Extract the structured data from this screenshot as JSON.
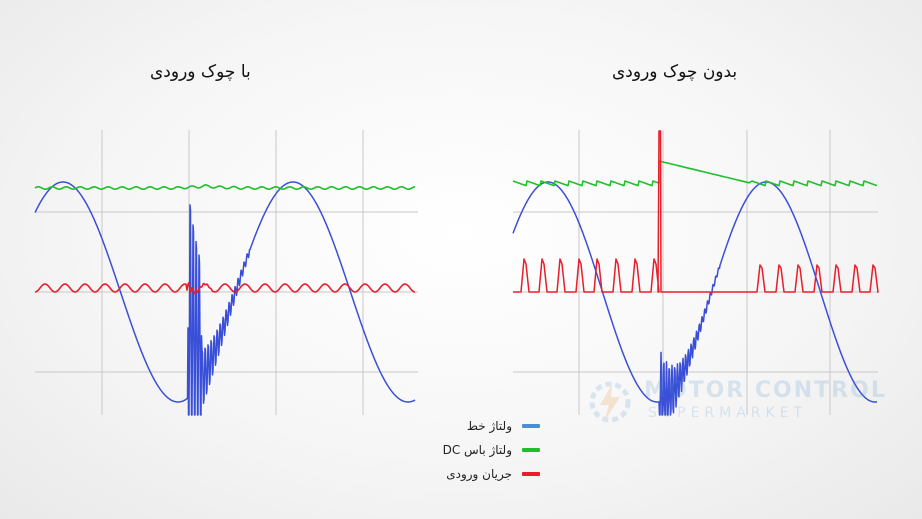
{
  "titles": {
    "left": "با چوک ورودی",
    "right": "بدون چوک ورودی"
  },
  "legend": [
    {
      "label": "ولتاژ خط",
      "color": "#4a8fd6"
    },
    {
      "label": "ولتاژ باس DC",
      "color": "#1fbf2a"
    },
    {
      "label": "جریان ورودی",
      "color": "#e81e2a"
    }
  ],
  "watermark": {
    "line1": "MOTOR CONTROL",
    "line2": "SUPERMARKET",
    "logo_icon": "lightning-gear-icon"
  },
  "colors": {
    "line_voltage": "#3a4fd8",
    "dc_bus_voltage": "#1fbf2a",
    "input_current": "#e81e2a",
    "grid": "#c8c8c8"
  },
  "chart_data": [
    {
      "type": "line",
      "title": "با چوک ورودی",
      "xlabel": "",
      "ylabel": "",
      "grid": true,
      "legend": "bottom-center",
      "series": [
        {
          "name": "ولتاژ خط",
          "shape": "sine with high-frequency ringing burst after transient",
          "cycles": 2.3,
          "transient_at_cycle": 1.2
        },
        {
          "name": "ولتاژ باس DC",
          "shape": "flat with small ripple",
          "level": "high"
        },
        {
          "name": "جریان ورودی",
          "shape": "continuous small ripple around mid level",
          "level": "mid"
        }
      ]
    },
    {
      "type": "line",
      "title": "بدون چوک ورودی",
      "xlabel": "",
      "ylabel": "",
      "grid": true,
      "legend": "bottom-center",
      "series": [
        {
          "name": "ولتاژ خط",
          "shape": "sine with high-frequency ringing burst after transient",
          "cycles": 2.3,
          "transient_at_cycle": 1.0
        },
        {
          "name": "ولتاژ باس DC",
          "shape": "sawtooth ripple with overshoot and decay after transient",
          "level": "high"
        },
        {
          "name": "جریان ورودی",
          "shape": "narrow pulses at voltage peaks, flat during decay",
          "level": "mid"
        }
      ]
    }
  ]
}
